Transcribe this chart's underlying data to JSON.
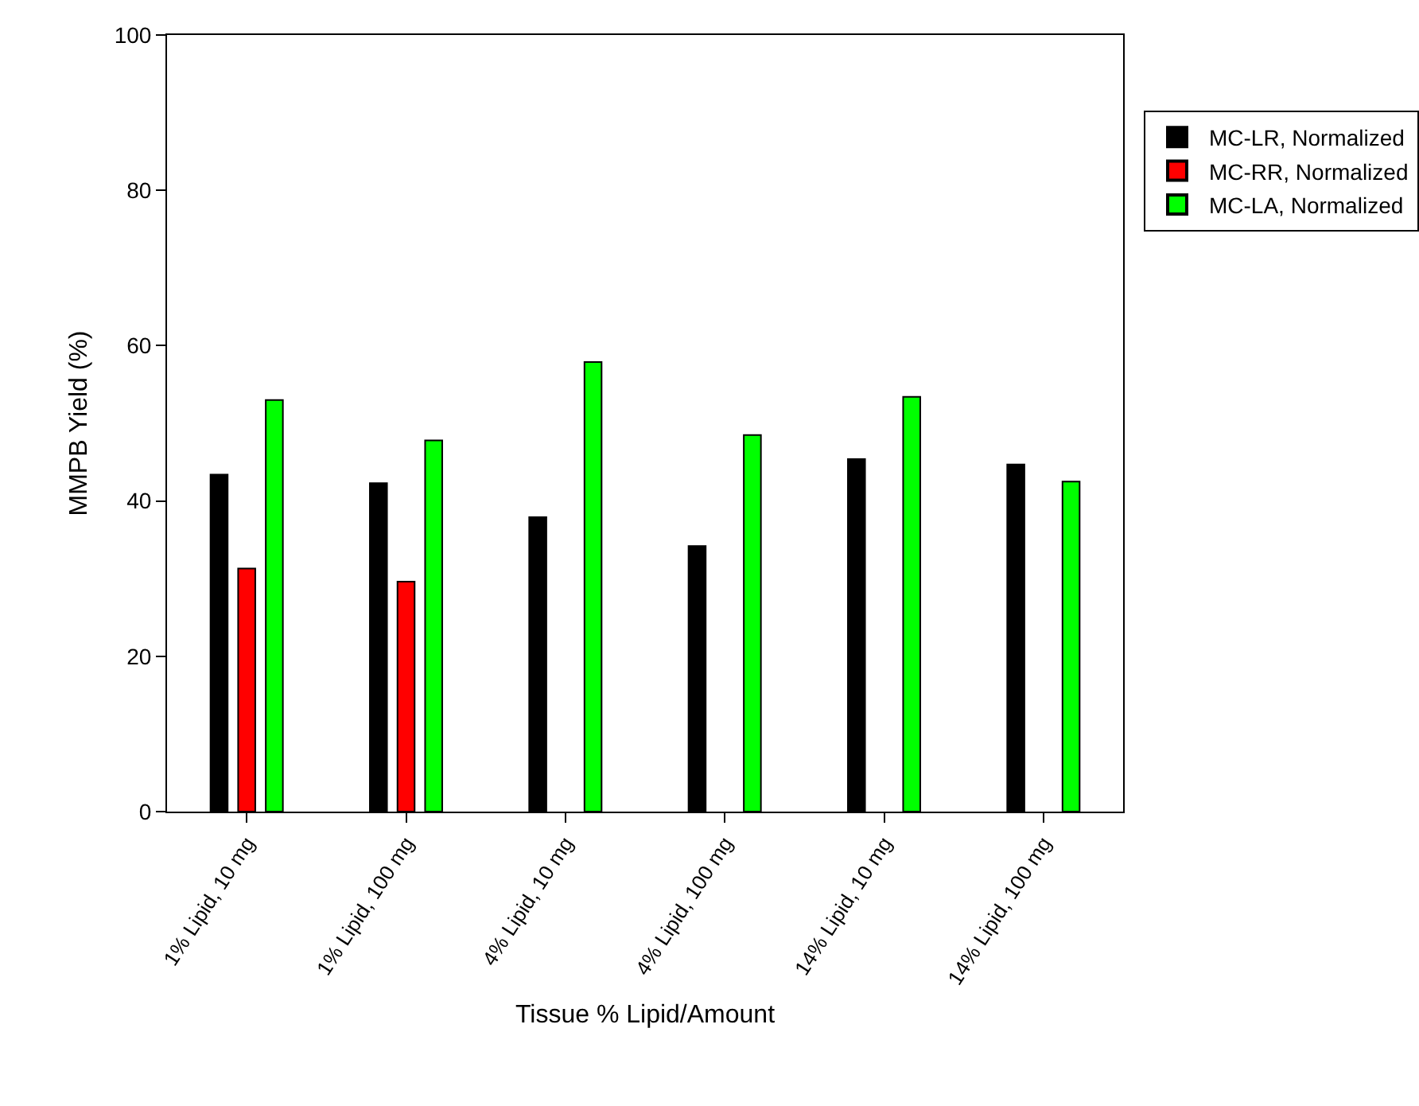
{
  "chart_data": {
    "type": "bar",
    "xlabel": "Tissue % Lipid/Amount",
    "ylabel": "MMPB Yield (%)",
    "categories": [
      "1% Lipid, 10 mg",
      "1% Lipid, 100 mg",
      "4% Lipid, 10 mg",
      "4% Lipid, 100 mg",
      "14% Lipid, 10 mg",
      "14% Lipid, 100 mg"
    ],
    "series": [
      {
        "name": "MC-LR, Normalized",
        "color": "#000000",
        "values": [
          43.4,
          42.3,
          37.9,
          34.2,
          45.4,
          44.7
        ]
      },
      {
        "name": "MC-RR, Normalized",
        "color": "#ff0000",
        "values": [
          31.3,
          29.6,
          null,
          null,
          null,
          null
        ]
      },
      {
        "name": "MC-LA, Normalized",
        "color": "#00ff00",
        "values": [
          53.0,
          47.8,
          57.9,
          48.5,
          53.4,
          42.5
        ]
      }
    ],
    "ylim": [
      0,
      100
    ],
    "yticks": [
      0,
      20,
      40,
      60,
      80,
      100
    ],
    "legend": "top right"
  }
}
